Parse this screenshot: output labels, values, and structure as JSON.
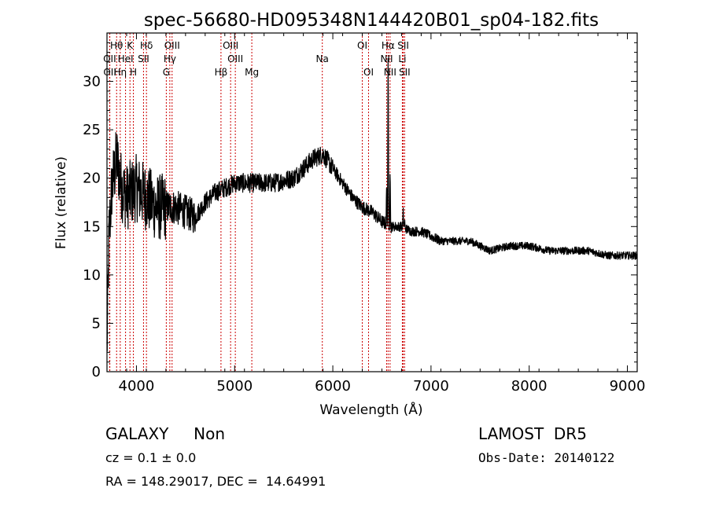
{
  "chart_data": {
    "type": "line",
    "title": "spec-56680-HD095348N144420B01_sp04-182.fits",
    "xlabel": "Wavelength (Å)",
    "ylabel": "Flux (relative)",
    "xlim": [
      3700,
      9100
    ],
    "ylim": [
      0,
      35
    ],
    "xticks": [
      4000,
      5000,
      6000,
      7000,
      8000,
      9000
    ],
    "yticks": [
      0,
      5,
      10,
      15,
      20,
      25,
      30
    ],
    "grid": false,
    "line_color": "#000000",
    "marker_color": "#cc0000",
    "spectral_lines": [
      {
        "label": "OII",
        "wavelength": 3727,
        "row": 1
      },
      {
        "label": "OII",
        "wavelength": 3729,
        "row": 2
      },
      {
        "label": "Hθ",
        "wavelength": 3798,
        "row": 0
      },
      {
        "label": "Hη",
        "wavelength": 3835,
        "row": 2
      },
      {
        "label": "K",
        "wavelength": 3934,
        "row": 0
      },
      {
        "label": "HeI",
        "wavelength": 3889,
        "row": 1
      },
      {
        "label": "H",
        "wavelength": 3969,
        "row": 2
      },
      {
        "label": "Hδ",
        "wavelength": 4102,
        "row": 0
      },
      {
        "label": "SII",
        "wavelength": 4072,
        "row": 1
      },
      {
        "label": "OIII",
        "wavelength": 4363,
        "row": 0
      },
      {
        "label": "Hγ",
        "wavelength": 4340,
        "row": 1
      },
      {
        "label": "G",
        "wavelength": 4304,
        "row": 2
      },
      {
        "label": "OIII",
        "wavelength": 4959,
        "row": 0
      },
      {
        "label": "OIII",
        "wavelength": 5007,
        "row": 1
      },
      {
        "label": "Hβ",
        "wavelength": 4861,
        "row": 2
      },
      {
        "label": "Mg",
        "wavelength": 5175,
        "row": 2
      },
      {
        "label": "Na",
        "wavelength": 5893,
        "row": 1
      },
      {
        "label": "OI",
        "wavelength": 6300,
        "row": 0
      },
      {
        "label": "OI",
        "wavelength": 6364,
        "row": 2
      },
      {
        "label": "Hα",
        "wavelength": 6563,
        "row": 0
      },
      {
        "label": "NII",
        "wavelength": 6548,
        "row": 1
      },
      {
        "label": "NII",
        "wavelength": 6583,
        "row": 2
      },
      {
        "label": "SII",
        "wavelength": 6717,
        "row": 0
      },
      {
        "label": "Li",
        "wavelength": 6708,
        "row": 1
      },
      {
        "label": "SII",
        "wavelength": 6731,
        "row": 2
      }
    ],
    "spectrum_anchors": [
      [
        3700,
        2
      ],
      [
        3720,
        14
      ],
      [
        3750,
        19
      ],
      [
        3800,
        22
      ],
      [
        3850,
        19
      ],
      [
        3900,
        18
      ],
      [
        4000,
        19
      ],
      [
        4100,
        18
      ],
      [
        4200,
        17
      ],
      [
        4300,
        17
      ],
      [
        4400,
        17
      ],
      [
        4500,
        16.5
      ],
      [
        4600,
        16
      ],
      [
        4700,
        17.5
      ],
      [
        4800,
        18.5
      ],
      [
        5000,
        19.5
      ],
      [
        5200,
        19.5
      ],
      [
        5400,
        19.5
      ],
      [
        5600,
        20
      ],
      [
        5800,
        22
      ],
      [
        5900,
        22.5
      ],
      [
        6000,
        21
      ],
      [
        6100,
        19.5
      ],
      [
        6200,
        18
      ],
      [
        6300,
        17
      ],
      [
        6400,
        16.5
      ],
      [
        6500,
        15.5
      ],
      [
        6600,
        15
      ],
      [
        6700,
        15
      ],
      [
        6800,
        14.5
      ],
      [
        6900,
        14.5
      ],
      [
        7000,
        14
      ],
      [
        7100,
        13.5
      ],
      [
        7200,
        13.5
      ],
      [
        7400,
        13.5
      ],
      [
        7600,
        12.5
      ],
      [
        7800,
        13
      ],
      [
        8000,
        13
      ],
      [
        8200,
        12.5
      ],
      [
        8400,
        12.5
      ],
      [
        8600,
        12.5
      ],
      [
        8800,
        12
      ],
      [
        9000,
        12
      ],
      [
        9100,
        12
      ]
    ],
    "noise_regions": [
      [
        3700,
        4300,
        3.5
      ],
      [
        4300,
        4600,
        1.8
      ],
      [
        4600,
        6000,
        1.0
      ],
      [
        6000,
        6600,
        0.7
      ],
      [
        6600,
        7100,
        0.5
      ],
      [
        7100,
        9100,
        0.4
      ]
    ],
    "emission_peaks": [
      {
        "wavelength": 6563,
        "peak": 32
      },
      {
        "wavelength": 6583,
        "peak": 21
      },
      {
        "wavelength": 6548,
        "peak": 19
      },
      {
        "wavelength": 6717,
        "peak": 16.5
      },
      {
        "wavelength": 6731,
        "peak": 15.5
      }
    ]
  },
  "info": {
    "object_type": "GALAXY     Non",
    "survey": "LAMOST  DR5",
    "cz": "cz = 0.1 ± 0.0",
    "obs_date": "Obs-Date: 20140122",
    "radec": "RA = 148.29017, DEC =  14.64991"
  }
}
